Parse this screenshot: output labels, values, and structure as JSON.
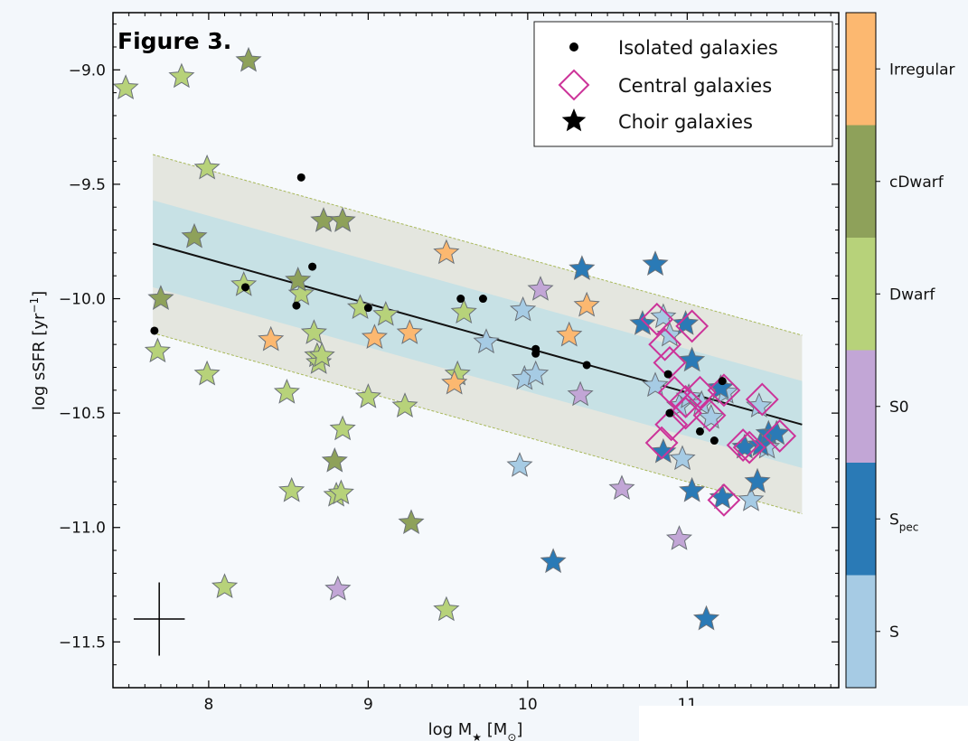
{
  "chart_data": {
    "type": "scatter",
    "title": "Figure 3.",
    "xlabel": "log M★ [M⊙]",
    "ylabel": "log sSFR [yr⁻¹]",
    "xlim": [
      7.4,
      11.95
    ],
    "ylim": [
      -11.7,
      -8.75
    ],
    "xticks": [
      8,
      9,
      10,
      11
    ],
    "yticks": [
      -9.0,
      -9.5,
      -10.0,
      -10.5,
      -11.0,
      -11.5
    ],
    "grid": false,
    "legend_placement": "top-right",
    "legend": [
      {
        "label": "Isolated galaxies",
        "marker": "dot"
      },
      {
        "label": "Central galaxies",
        "marker": "diamond"
      },
      {
        "label": "Choir galaxies",
        "marker": "star"
      }
    ],
    "fit_line": {
      "x": [
        7.65,
        11.72
      ],
      "y": [
        -9.76,
        -10.55
      ]
    },
    "band_inner_halfwidth": 0.19,
    "band_outer_halfwidth": 0.39,
    "colorbar": [
      {
        "label": "Irregular",
        "color": "#fcb870"
      },
      {
        "label": "cDwarf",
        "color": "#8ea15a"
      },
      {
        "label": "Dwarf",
        "color": "#b7d27a"
      },
      {
        "label": "S0",
        "color": "#c2a6d6"
      },
      {
        "label": "S",
        "sub": "pec",
        "color": "#2a7ab6"
      },
      {
        "label": "S",
        "color": "#a6cbe4"
      }
    ],
    "error_bar": {
      "x": 7.69,
      "y": -11.4,
      "xerr": 0.16,
      "yerr": 0.16
    },
    "series": [
      {
        "name": "Isolated galaxies",
        "marker": "dot",
        "x": [
          7.66,
          8.23,
          8.58,
          8.65,
          8.55,
          9.0,
          9.58,
          9.72,
          10.05,
          10.05,
          10.37,
          10.88,
          10.89,
          11.08,
          11.17,
          11.22
        ],
        "y": [
          -10.14,
          -9.95,
          -9.47,
          -9.86,
          -10.03,
          -10.04,
          -10.0,
          -10.0,
          -10.22,
          -10.24,
          -10.29,
          -10.33,
          -10.5,
          -10.58,
          -10.62,
          -10.36
        ]
      },
      {
        "name": "Central galaxies",
        "marker": "diamond",
        "x": [
          10.81,
          10.86,
          11.03,
          10.89,
          10.92,
          11.08,
          10.99,
          11.14,
          11.23,
          11.35,
          11.47,
          11.39,
          11.58,
          10.84,
          11.23,
          10.99,
          10.9
        ],
        "y": [
          -10.09,
          -10.2,
          -10.12,
          -10.28,
          -10.41,
          -10.41,
          -10.5,
          -10.51,
          -10.4,
          -10.64,
          -10.44,
          -10.65,
          -10.6,
          -10.63,
          -10.88,
          -10.45,
          -10.55
        ]
      },
      {
        "name": "Irregular",
        "marker": "star",
        "x": [
          8.39,
          9.04,
          9.26,
          9.49,
          9.54,
          10.26,
          10.37
        ],
        "y": [
          -10.18,
          -10.17,
          -10.15,
          -9.8,
          -10.37,
          -10.16,
          -10.03
        ]
      },
      {
        "name": "cDwarf",
        "marker": "star",
        "x": [
          8.25,
          7.91,
          7.7,
          8.72,
          8.84,
          8.56,
          8.79,
          9.27
        ],
        "y": [
          -8.96,
          -9.73,
          -10.0,
          -9.66,
          -9.66,
          -9.92,
          -10.71,
          -10.98
        ]
      },
      {
        "name": "Dwarf",
        "marker": "star",
        "x": [
          7.48,
          7.83,
          7.99,
          8.22,
          7.68,
          7.99,
          8.1,
          8.49,
          8.52,
          8.58,
          8.66,
          8.68,
          8.69,
          8.71,
          8.8,
          8.83,
          8.84,
          8.95,
          9.0,
          9.11,
          9.23,
          9.49,
          9.56,
          9.6
        ],
        "y": [
          -9.08,
          -9.03,
          -9.43,
          -9.94,
          -10.23,
          -10.33,
          -11.26,
          -10.41,
          -10.84,
          -9.98,
          -10.15,
          -10.25,
          -10.28,
          -10.25,
          -10.86,
          -10.85,
          -10.57,
          -10.04,
          -10.43,
          -10.07,
          -10.47,
          -11.36,
          -10.33,
          -10.06
        ]
      },
      {
        "name": "S0",
        "marker": "star",
        "x": [
          10.08,
          10.33,
          10.59,
          10.95,
          8.81
        ],
        "y": [
          -9.96,
          -10.42,
          -10.83,
          -11.05,
          -11.27
        ]
      },
      {
        "name": "Spec",
        "marker": "star",
        "x": [
          10.34,
          10.72,
          10.8,
          10.99,
          11.03,
          10.85,
          11.21,
          11.36,
          11.44,
          11.46,
          11.51,
          11.56,
          11.03,
          11.22,
          10.16,
          11.12
        ],
        "y": [
          -9.87,
          -10.11,
          -9.85,
          -10.11,
          -10.27,
          -10.67,
          -10.39,
          -10.65,
          -10.8,
          -10.64,
          -10.59,
          -10.59,
          -10.84,
          -10.87,
          -11.15,
          -11.4
        ]
      },
      {
        "name": "S",
        "marker": "star",
        "x": [
          9.97,
          9.98,
          10.05,
          9.74,
          9.95,
          10.8,
          10.85,
          10.89,
          10.95,
          11.01,
          11.09,
          11.15,
          11.24,
          11.45,
          11.5,
          10.97,
          11.4
        ],
        "y": [
          -10.05,
          -10.35,
          -10.33,
          -10.19,
          -10.73,
          -10.38,
          -10.08,
          -10.16,
          -10.47,
          -10.43,
          -10.46,
          -10.52,
          -10.41,
          -10.47,
          -10.65,
          -10.7,
          -10.88
        ]
      }
    ]
  }
}
